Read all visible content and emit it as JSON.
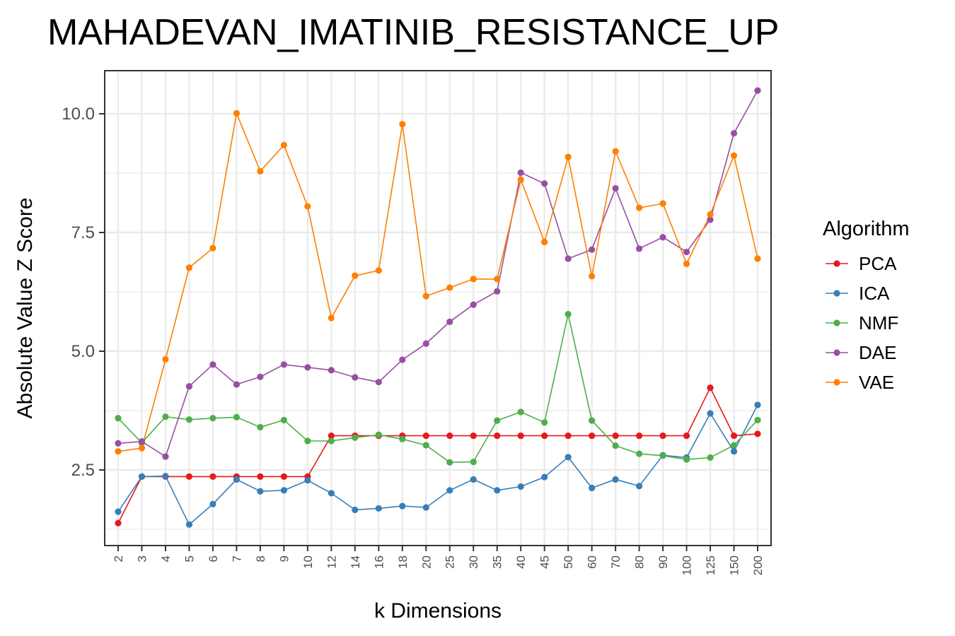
{
  "chart_data": {
    "type": "line",
    "title": "MAHADEVAN_IMATINIB_RESISTANCE_UP",
    "xlabel": "k Dimensions",
    "ylabel": "Absolute Value Z Score",
    "categories": [
      "2",
      "3",
      "4",
      "5",
      "6",
      "7",
      "8",
      "9",
      "10",
      "12",
      "14",
      "16",
      "18",
      "20",
      "25",
      "30",
      "35",
      "40",
      "45",
      "50",
      "60",
      "70",
      "80",
      "90",
      "100",
      "125",
      "150",
      "200"
    ],
    "ylim": [
      0.9,
      10.9
    ],
    "yticks": [
      2.5,
      5.0,
      7.5,
      10.0
    ],
    "ytick_labels": [
      "2.5",
      "5.0",
      "7.5",
      "10.0"
    ],
    "grid": true,
    "legend": {
      "title": "Algorithm",
      "position": "right"
    },
    "series": [
      {
        "name": "PCA",
        "color": "#e41a1c",
        "values": [
          1.38,
          2.36,
          2.36,
          2.36,
          2.36,
          2.36,
          2.36,
          2.36,
          2.36,
          3.22,
          3.22,
          3.22,
          3.22,
          3.22,
          3.22,
          3.22,
          3.22,
          3.22,
          3.22,
          3.22,
          3.22,
          3.22,
          3.22,
          3.22,
          3.22,
          4.23,
          3.22,
          3.26
        ]
      },
      {
        "name": "ICA",
        "color": "#377eb8",
        "values": [
          1.62,
          2.36,
          2.37,
          1.35,
          1.78,
          2.3,
          2.05,
          2.07,
          2.28,
          2.01,
          1.66,
          1.69,
          1.74,
          1.71,
          2.07,
          2.3,
          2.07,
          2.15,
          2.35,
          2.77,
          2.12,
          2.3,
          2.16,
          2.81,
          2.76,
          3.69,
          2.89,
          3.87
        ]
      },
      {
        "name": "NMF",
        "color": "#4daf4a",
        "values": [
          3.59,
          3.07,
          3.62,
          3.56,
          3.59,
          3.61,
          3.4,
          3.55,
          3.11,
          3.11,
          3.18,
          3.24,
          3.15,
          3.02,
          2.66,
          2.67,
          3.54,
          3.72,
          3.5,
          5.78,
          3.54,
          3.01,
          2.84,
          2.8,
          2.72,
          2.76,
          3.02,
          3.55
        ]
      },
      {
        "name": "DAE",
        "color": "#984ea3",
        "values": [
          3.06,
          3.1,
          2.78,
          4.26,
          4.72,
          4.3,
          4.46,
          4.72,
          4.66,
          4.6,
          4.45,
          4.35,
          4.82,
          5.16,
          5.62,
          5.98,
          6.26,
          8.76,
          8.53,
          6.95,
          7.14,
          8.43,
          7.16,
          7.4,
          7.09,
          7.77,
          9.59,
          10.49
        ]
      },
      {
        "name": "VAE",
        "color": "#ff7f00",
        "values": [
          2.89,
          2.96,
          4.83,
          6.76,
          7.17,
          10.01,
          8.79,
          9.34,
          8.05,
          5.7,
          6.59,
          6.7,
          9.78,
          6.16,
          6.34,
          6.52,
          6.52,
          8.61,
          7.3,
          9.09,
          6.58,
          9.21,
          8.02,
          8.11,
          6.84,
          7.88,
          9.12,
          6.95
        ]
      }
    ]
  }
}
